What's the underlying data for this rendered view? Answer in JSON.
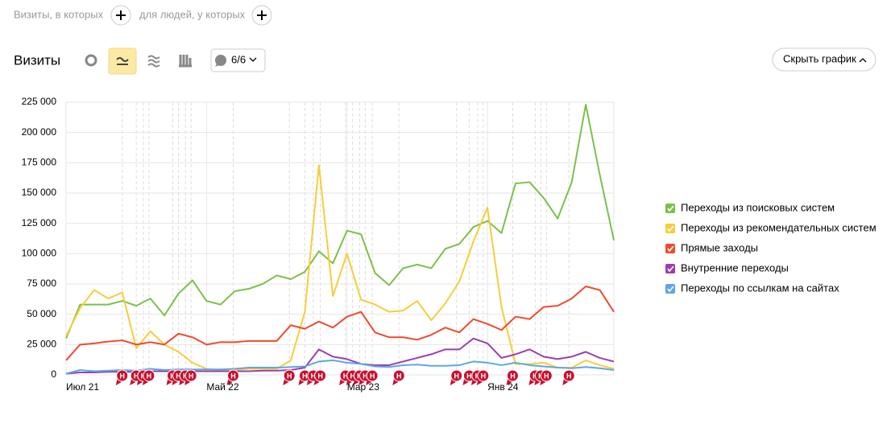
{
  "filters": {
    "visits_label": "Визиты, в которых",
    "people_label": "для людей, у которых"
  },
  "toolbar": {
    "title": "Визиты",
    "segments_count": "6/6",
    "hide_chart": "Скрыть график"
  },
  "chart_data": {
    "type": "line",
    "categories": [
      "Июл 21",
      null,
      null,
      null,
      null,
      null,
      null,
      null,
      null,
      null,
      "Май 22",
      null,
      null,
      null,
      null,
      null,
      null,
      null,
      null,
      null,
      "Мар 23",
      null,
      null,
      null,
      null,
      null,
      null,
      null,
      null,
      null,
      "Янв 24",
      null,
      null,
      null,
      null,
      null,
      null,
      null,
      null,
      null
    ],
    "series": [
      {
        "name": "Переходы из поисковых систем",
        "color": "#7cc04b",
        "values": [
          30000,
          58000,
          58000,
          58000,
          61000,
          57000,
          63000,
          49000,
          67000,
          78000,
          61000,
          58000,
          69000,
          71000,
          75000,
          82000,
          79000,
          85000,
          102000,
          92000,
          119000,
          116000,
          84000,
          74000,
          88000,
          91000,
          88000,
          104000,
          108000,
          122000,
          127000,
          117000,
          158000,
          159000,
          146000,
          129000,
          159000,
          223000,
          165000,
          111000
        ]
      },
      {
        "name": "Переходы из рекомендательных систем",
        "color": "#f7cd3a",
        "values": [
          32000,
          55000,
          70000,
          63000,
          68000,
          22000,
          36000,
          25000,
          19000,
          10000,
          5000,
          4000,
          4000,
          5000,
          5000,
          5000,
          12000,
          52000,
          173000,
          65000,
          100000,
          62000,
          58000,
          52000,
          53000,
          61000,
          45000,
          59000,
          77000,
          110000,
          138000,
          56000,
          9000,
          9000,
          10000,
          6000,
          6000,
          12000,
          8000,
          5000
        ]
      },
      {
        "name": "Прямые заходы",
        "color": "#ef4a2b",
        "values": [
          12000,
          25000,
          26000,
          27500,
          28500,
          25000,
          27000,
          25000,
          34000,
          31000,
          25000,
          27000,
          27000,
          28000,
          28000,
          28000,
          41000,
          38000,
          44000,
          39000,
          48000,
          52000,
          35000,
          31000,
          31000,
          29000,
          33000,
          39000,
          35000,
          46000,
          42000,
          37000,
          48000,
          46000,
          56000,
          57000,
          63000,
          73000,
          70000,
          52000
        ]
      },
      {
        "name": "Внутренние переходы",
        "color": "#9a3fae",
        "values": [
          1000,
          2000,
          2000,
          2500,
          2500,
          2500,
          3000,
          3000,
          3000,
          3000,
          3000,
          3000,
          3000,
          3000,
          3500,
          3500,
          4000,
          6000,
          21000,
          15000,
          13000,
          9000,
          8000,
          8000,
          11000,
          14000,
          17000,
          21000,
          21000,
          30000,
          26000,
          14000,
          17000,
          21000,
          15000,
          13000,
          15000,
          19000,
          14000,
          11000
        ]
      },
      {
        "name": "Переходы по ссылкам на сайтах",
        "color": "#5ea7e3",
        "values": [
          1000,
          4000,
          3000,
          3500,
          4000,
          3500,
          5000,
          4000,
          4500,
          4500,
          4500,
          4500,
          5000,
          6000,
          6000,
          6000,
          6500,
          7000,
          11000,
          12000,
          10000,
          9000,
          7000,
          6500,
          8000,
          8500,
          7500,
          7500,
          8000,
          11000,
          10000,
          8000,
          10000,
          8000,
          7000,
          6000,
          5500,
          6500,
          5500,
          4000
        ]
      }
    ],
    "ylim": [
      0,
      225000
    ],
    "yticks": [
      0,
      {
        "value": 25000,
        "label": "25 000"
      },
      {
        "value": 50000,
        "label": "50 000"
      },
      {
        "value": 75000,
        "label": "75 000"
      },
      {
        "value": 100000,
        "label": "100 000"
      },
      {
        "value": 125000,
        "label": "125 000"
      },
      {
        "value": 150000,
        "label": "150 000"
      },
      {
        "value": 175000,
        "label": "175 000"
      },
      {
        "value": 200000,
        "label": "200 000"
      },
      {
        "value": 225000,
        "label": "225 000"
      }
    ],
    "grid": true,
    "annotations": [
      {
        "x": 4,
        "label": "Н"
      },
      {
        "x": 5,
        "label": "Н"
      },
      {
        "x": 5.5,
        "label": "Н"
      },
      {
        "x": 5.9,
        "label": "Н"
      },
      {
        "x": 7.6,
        "label": "Н"
      },
      {
        "x": 8,
        "label": "Н"
      },
      {
        "x": 8.5,
        "label": "Н"
      },
      {
        "x": 8.9,
        "label": "Н"
      },
      {
        "x": 11.9,
        "label": "Н"
      },
      {
        "x": 15.9,
        "label": "Н"
      },
      {
        "x": 17,
        "label": "Н"
      },
      {
        "x": 17.6,
        "label": "Н"
      },
      {
        "x": 18.1,
        "label": "Н"
      },
      {
        "x": 19.9,
        "label": "Н"
      },
      {
        "x": 20.4,
        "label": "Н"
      },
      {
        "x": 20.9,
        "label": "Н"
      },
      {
        "x": 21.3,
        "label": "Н"
      },
      {
        "x": 21.8,
        "label": "Н"
      },
      {
        "x": 23.7,
        "label": "Н"
      },
      {
        "x": 27.8,
        "label": "Н"
      },
      {
        "x": 28.7,
        "label": "Н"
      },
      {
        "x": 29.3,
        "label": "Н"
      },
      {
        "x": 29.7,
        "label": "Н"
      },
      {
        "x": 31.8,
        "label": "Н"
      },
      {
        "x": 33.4,
        "label": "Н"
      },
      {
        "x": 33.8,
        "label": "Н"
      },
      {
        "x": 34.2,
        "label": "Н"
      },
      {
        "x": 35.8,
        "label": "Н"
      }
    ]
  }
}
